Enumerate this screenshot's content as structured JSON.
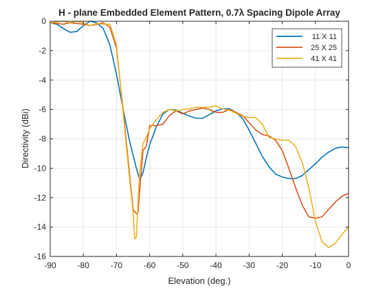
{
  "chart_data": {
    "type": "line",
    "title": "H - plane Embedded Element Pattern, 0.7λ Spacing Dipole Array",
    "xlabel": "Elevation (deg.)",
    "ylabel": "Directivity (dBi)",
    "xlim": [
      -90,
      0
    ],
    "ylim": [
      -16,
      0
    ],
    "xticks": [
      -90,
      -80,
      -70,
      -60,
      -50,
      -40,
      -30,
      -20,
      -10,
      0
    ],
    "yticks": [
      0,
      -2,
      -4,
      -6,
      -8,
      -10,
      -12,
      -14,
      -16
    ],
    "grid": true,
    "legend_position": "top-right",
    "series": [
      {
        "name": "11 X 11",
        "color": "#0072BD",
        "x": [
          -90,
          -88,
          -86,
          -84,
          -82,
          -80,
          -78,
          -76,
          -74,
          -72,
          -70,
          -68,
          -66,
          -64,
          -63,
          -62,
          -61,
          -60,
          -58,
          -56,
          -54,
          -52,
          -50,
          -48,
          -46,
          -44,
          -42,
          -40,
          -38,
          -36,
          -34,
          -32,
          -30,
          -28,
          -26,
          -24,
          -22,
          -20,
          -18,
          -16,
          -14,
          -12,
          -10,
          -8,
          -6,
          -4,
          -2,
          0
        ],
        "y": [
          -0.1,
          -0.2,
          -0.5,
          -0.75,
          -0.7,
          -0.3,
          0.0,
          -0.1,
          -0.5,
          -1.6,
          -3.6,
          -6.0,
          -8.2,
          -10.0,
          -10.8,
          -10.3,
          -9.3,
          -8.4,
          -7.2,
          -6.3,
          -6.0,
          -6.05,
          -6.25,
          -6.45,
          -6.6,
          -6.6,
          -6.35,
          -6.1,
          -5.95,
          -5.95,
          -6.2,
          -6.6,
          -7.4,
          -8.3,
          -9.2,
          -9.9,
          -10.4,
          -10.6,
          -10.7,
          -10.7,
          -10.5,
          -10.1,
          -9.7,
          -9.25,
          -8.9,
          -8.65,
          -8.55,
          -8.6
        ]
      },
      {
        "name": "25 X 25",
        "color": "#D95319",
        "x": [
          -90,
          -88,
          -86,
          -84,
          -82,
          -80,
          -78,
          -76,
          -74,
          -72,
          -70,
          -68,
          -67,
          -66,
          -65,
          -64,
          -63.5,
          -63,
          -62,
          -61,
          -60,
          -58,
          -56,
          -54,
          -52,
          -50,
          -48,
          -46,
          -44,
          -42,
          -40,
          -38,
          -36,
          -34,
          -32,
          -30,
          -28,
          -26,
          -24,
          -22,
          -20,
          -18,
          -16,
          -14,
          -12,
          -10,
          -8,
          -6,
          -4,
          -2,
          0
        ],
        "y": [
          -0.1,
          -0.15,
          -0.2,
          -0.1,
          -0.15,
          -0.2,
          -0.3,
          -0.2,
          -0.1,
          -0.4,
          -1.8,
          -6.0,
          -8.3,
          -10.5,
          -12.8,
          -13.1,
          -13.0,
          -11.5,
          -8.8,
          -8.5,
          -7.1,
          -7.1,
          -7.0,
          -6.4,
          -6.1,
          -6.3,
          -6.1,
          -6.0,
          -5.9,
          -6.0,
          -6.2,
          -6.2,
          -6.0,
          -6.2,
          -6.4,
          -6.9,
          -7.4,
          -7.7,
          -7.8,
          -8.1,
          -8.8,
          -10.0,
          -11.3,
          -12.5,
          -13.3,
          -13.4,
          -13.3,
          -12.8,
          -12.3,
          -11.9,
          -11.7
        ]
      },
      {
        "name": "41 X 41",
        "color": "#EDB120",
        "x": [
          -90,
          -88,
          -86,
          -84,
          -82,
          -80,
          -78,
          -76,
          -74,
          -72,
          -70,
          -68,
          -67,
          -66,
          -65,
          -64.5,
          -64,
          -63.5,
          -63,
          -62,
          -61,
          -60,
          -58,
          -56,
          -54,
          -52,
          -50,
          -48,
          -46,
          -44,
          -42,
          -40,
          -38,
          -36,
          -34,
          -32,
          -30,
          -28,
          -26,
          -24,
          -22,
          -20,
          -18,
          -16,
          -14,
          -12,
          -10,
          -8,
          -6,
          -4,
          -2,
          0
        ],
        "y": [
          -0.1,
          -0.05,
          0.0,
          -0.1,
          0.0,
          -0.1,
          -0.3,
          -0.15,
          -0.2,
          -0.2,
          -1.6,
          -6.2,
          -8.6,
          -10.8,
          -13.0,
          -14.8,
          -14.7,
          -12.3,
          -10.2,
          -8.3,
          -7.9,
          -7.3,
          -6.7,
          -6.2,
          -6.0,
          -6.1,
          -6.0,
          -5.95,
          -5.85,
          -5.85,
          -5.85,
          -5.75,
          -5.95,
          -6.05,
          -6.25,
          -6.45,
          -6.55,
          -6.55,
          -7.0,
          -7.9,
          -8.0,
          -8.1,
          -8.1,
          -8.5,
          -9.6,
          -11.3,
          -13.6,
          -15.0,
          -15.4,
          -15.1,
          -14.5,
          -14.0
        ]
      }
    ]
  }
}
